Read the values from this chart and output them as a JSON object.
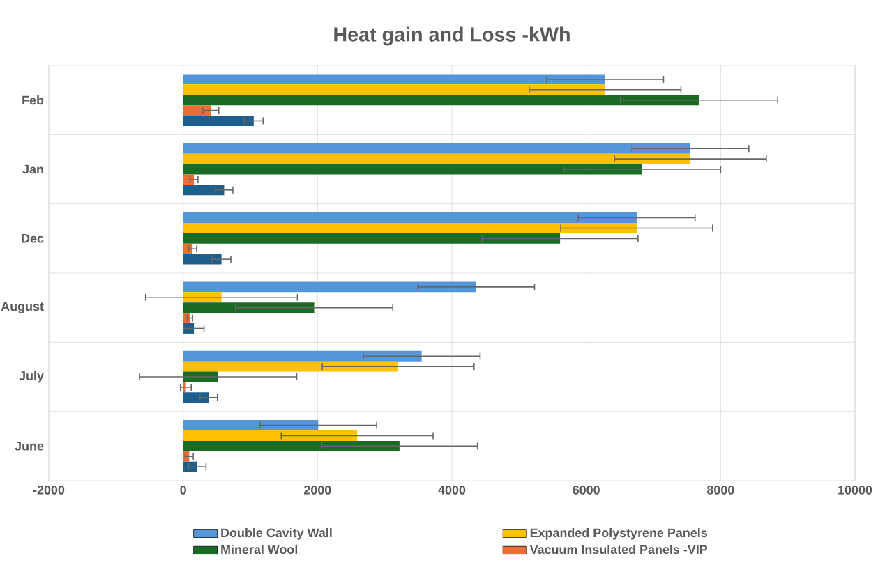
{
  "chart_data": {
    "type": "bar",
    "orientation": "horizontal",
    "title": "Heat gain and Loss -kWh",
    "categories": [
      "Feb",
      "Jan",
      "Dec",
      "August",
      "July",
      "June"
    ],
    "series": [
      {
        "name": "Double Cavity Wall",
        "color": "#5596db",
        "values": [
          6280,
          7550,
          6750,
          4360,
          3550,
          2010
        ],
        "errors": [
          870,
          870,
          870,
          870,
          870,
          870
        ]
      },
      {
        "name": "Expanded Polystyrene Panels",
        "color": "#ffc000",
        "values": [
          6280,
          7550,
          6750,
          570,
          3200,
          2590
        ],
        "errors": [
          1130,
          1130,
          1130,
          1130,
          1130,
          1130
        ]
      },
      {
        "name": "Mineral Wool",
        "color": "#1a6b24",
        "values": [
          7680,
          6830,
          5610,
          1950,
          520,
          3220
        ],
        "errors": [
          1170,
          1170,
          1160,
          1170,
          1170,
          1160
        ]
      },
      {
        "name": "Vacuum Insulated Panels -VIP",
        "color": "#eb6e35",
        "values": [
          410,
          160,
          140,
          100,
          40,
          90
        ],
        "errors": [
          120,
          60,
          60,
          40,
          80,
          60
        ]
      },
      {
        "color": "#1d5f8a",
        "values": [
          1050,
          610,
          570,
          160,
          380,
          210
        ],
        "errors": [
          140,
          130,
          140,
          150,
          130,
          130
        ]
      }
    ],
    "xlim": [
      -2000,
      10000
    ],
    "xticks": [
      -2000,
      0,
      2000,
      4000,
      6000,
      8000,
      10000
    ],
    "grid": true,
    "legend": "bottom"
  }
}
